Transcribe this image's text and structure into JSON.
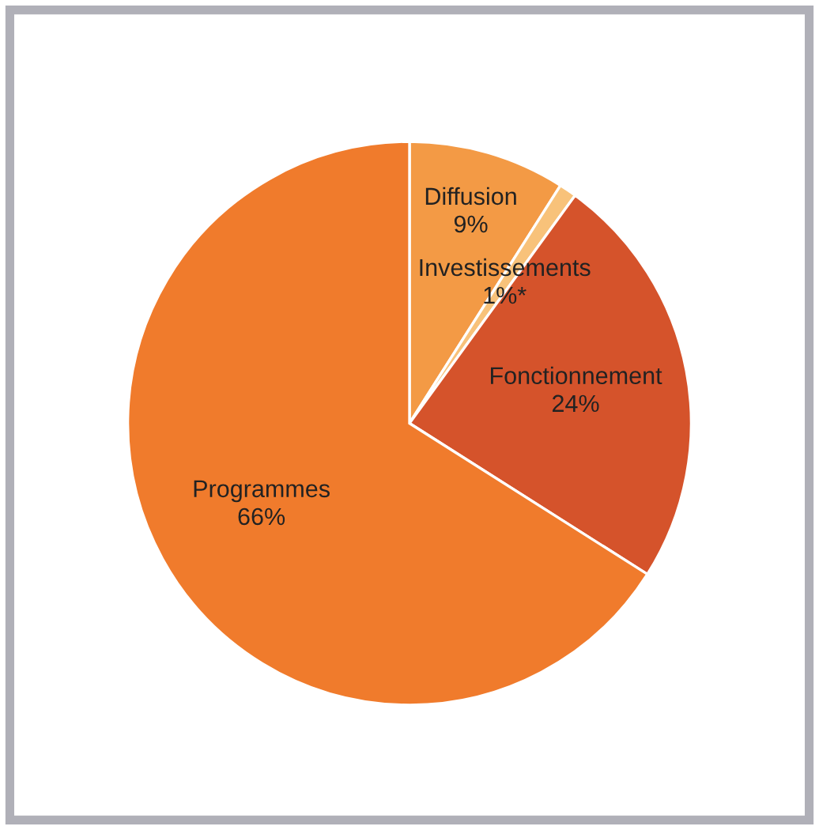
{
  "chart_data": {
    "type": "pie",
    "categories": [
      "Diffusion",
      "Investissements",
      "Fonctionnement",
      "Programmes"
    ],
    "values": [
      9,
      1,
      24,
      66
    ],
    "value_labels": [
      "9%",
      "1%*",
      "24%",
      "66%"
    ],
    "colors": [
      "#f39a45",
      "#f8c27a",
      "#d5532b",
      "#f07b2c"
    ]
  }
}
